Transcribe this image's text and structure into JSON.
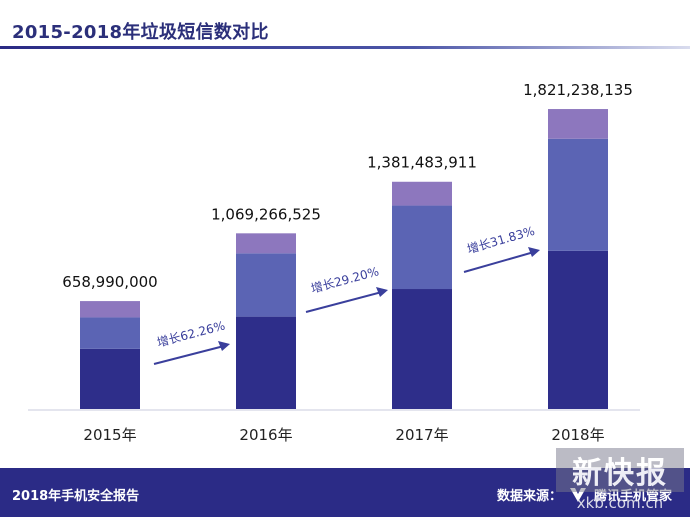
{
  "header": {
    "title": "2015-2018年垃圾短信数对比"
  },
  "footer": {
    "report_label": "2018年手机安全报告",
    "source_label": "数据来源：",
    "source_name": "腾讯手机管家"
  },
  "watermark": {
    "main": "新快报",
    "sub": "xkb.com.cn"
  },
  "colors": {
    "bar_bottom": "#2e2e8a",
    "bar_middle": "#5b64b4",
    "bar_top": "#8d77be",
    "arrow": "#3a3f9c",
    "footer": "#2b2b86"
  },
  "chart_data": {
    "type": "bar",
    "title": "2015-2018年垃圾短信数对比",
    "categories": [
      "2015年",
      "2016年",
      "2017年",
      "2018年"
    ],
    "values": [
      658990000,
      1069266525,
      1381483911,
      1821238135
    ],
    "value_labels": [
      "658,990,000",
      "1,069,266,525",
      "1,381,483,911",
      "1,821,238,135"
    ],
    "stacked_segment_values": [
      [
        370000000,
        190000000,
        99000000
      ],
      [
        565000000,
        383000000,
        121000000
      ],
      [
        732000000,
        505000000,
        144000000
      ],
      [
        963000000,
        678000000,
        180000000
      ]
    ],
    "growth_labels": [
      "增长62.26%",
      "增长29.20%",
      "增长31.83%"
    ],
    "ylim": [
      0,
      2000000000
    ],
    "xlabel": "",
    "ylabel": "",
    "grid": false,
    "legend": "none"
  }
}
